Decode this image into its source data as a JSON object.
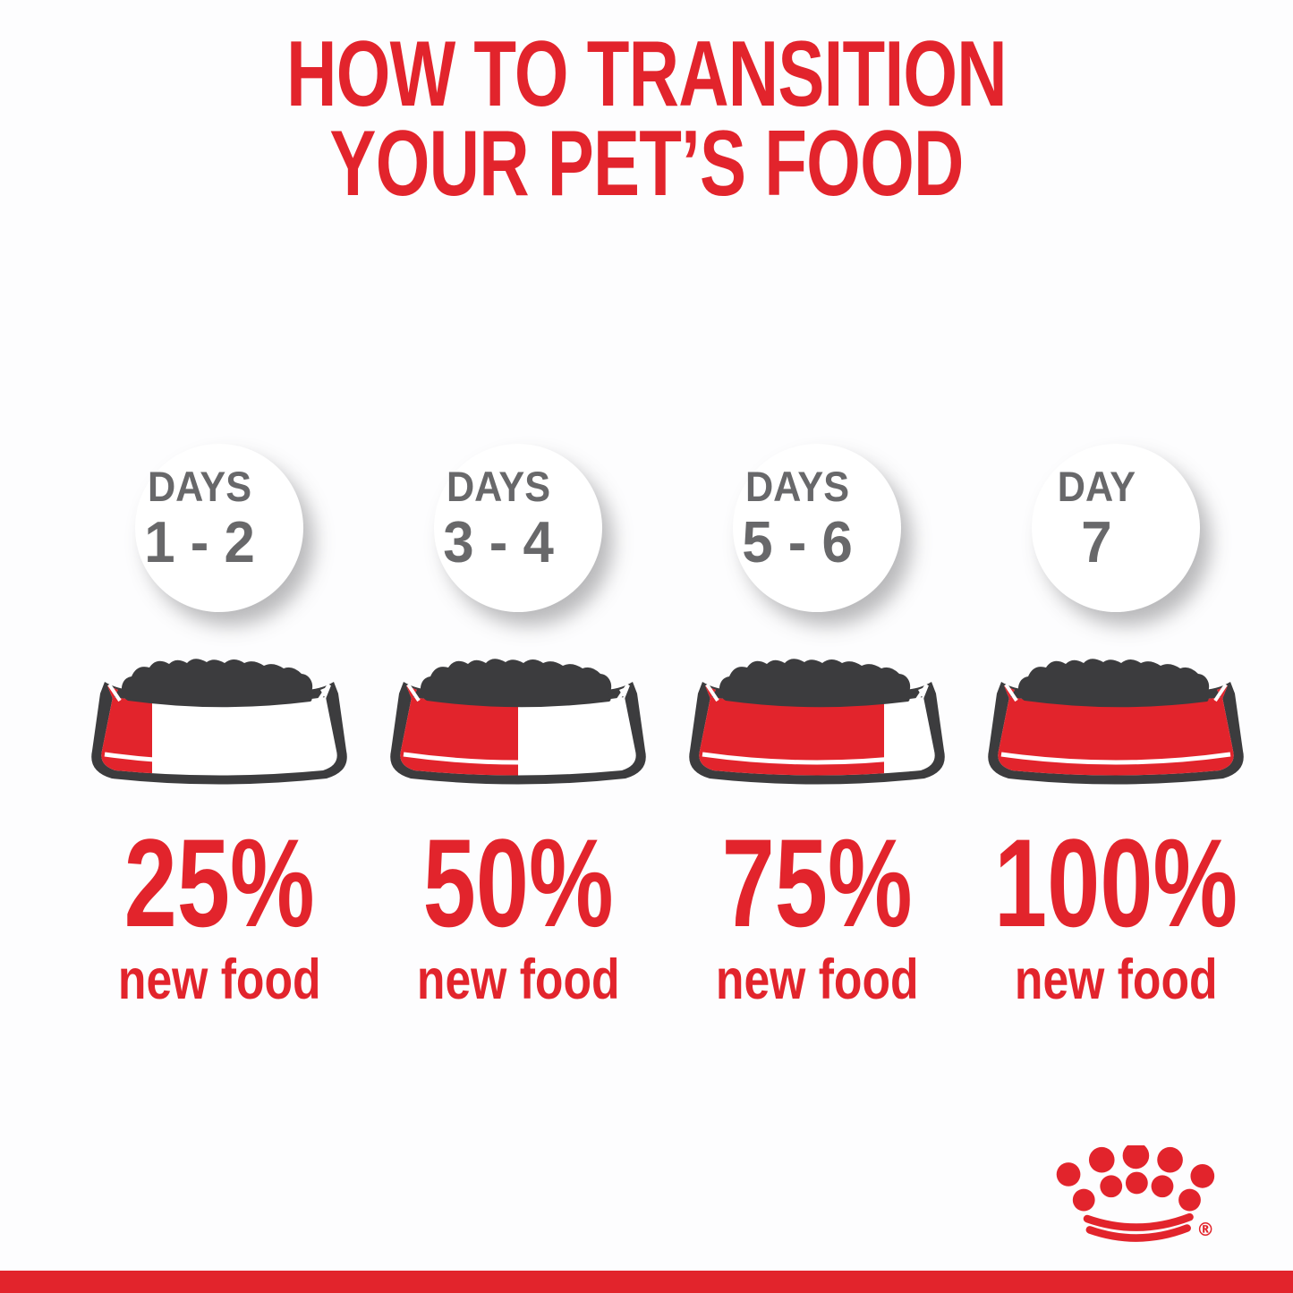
{
  "title": {
    "line1": "HOW TO TRANSITION",
    "line2": "YOUR PET’S FOOD"
  },
  "columns": [
    {
      "day_label": "DAYS",
      "day_range": "1 - 2",
      "fill_percent": 25,
      "percent_label": "25%",
      "sub_label": "new food"
    },
    {
      "day_label": "DAYS",
      "day_range": "3 - 4",
      "fill_percent": 50,
      "percent_label": "50%",
      "sub_label": "new food"
    },
    {
      "day_label": "DAYS",
      "day_range": "5 - 6",
      "fill_percent": 75,
      "percent_label": "75%",
      "sub_label": "new food"
    },
    {
      "day_label": "DAY",
      "day_range": "7",
      "fill_percent": 100,
      "percent_label": "100%",
      "sub_label": "new food"
    }
  ],
  "brand": {
    "logo": "royal-canin-crown",
    "registered_mark": "®"
  },
  "colors": {
    "red": "#e2242c",
    "dark": "#3c3c3e",
    "gray_text": "#68686a",
    "background": "#fdfdfe",
    "circle_fill": "#ffffff"
  }
}
